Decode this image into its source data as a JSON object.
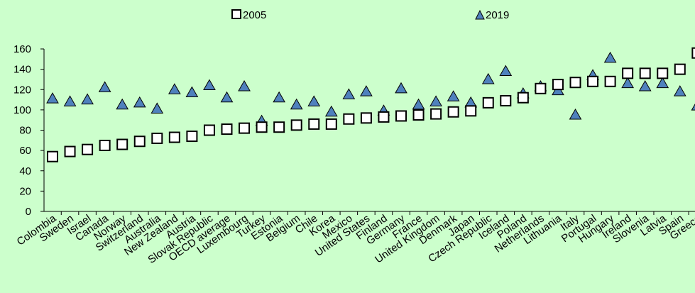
{
  "chart_data": {
    "type": "scatter",
    "categories": [
      "Colombia",
      "Sweden",
      "Israel",
      "Canada",
      "Norway",
      "Switzerland",
      "Australia",
      "New Zealand",
      "Austria",
      "Slovak Republic",
      "OECD average",
      "Luxembourg",
      "Turkey",
      "Estonia",
      "Belgium",
      "Chile",
      "Korea",
      "Mexico",
      "United States",
      "Finland",
      "Germany",
      "France",
      "United Kingdom",
      "Denmark",
      "Japan",
      "Czech Republic",
      "Iceland",
      "Poland",
      "Netherlands",
      "Lithuania",
      "Italy",
      "Portugal",
      "Hungary",
      "Ireland",
      "Slovenia",
      "Latvia",
      "Spain",
      "Greece"
    ],
    "series": [
      {
        "name": "2005",
        "marker": "square",
        "color": "#ffffff",
        "stroke": "#000000",
        "values": [
          54,
          59,
          61,
          65,
          66,
          69,
          72,
          73,
          74,
          80,
          81,
          82,
          83,
          83,
          85,
          86,
          86,
          91,
          92,
          93,
          94,
          95,
          96,
          98,
          99,
          107,
          109,
          112,
          121,
          125,
          127,
          128,
          128,
          136,
          136,
          136,
          140,
          156
        ]
      },
      {
        "name": "2019",
        "marker": "triangle",
        "color": "#4f81bd",
        "stroke": "#000000",
        "values": [
          111,
          108,
          110,
          122,
          105,
          107,
          101,
          120,
          117,
          124,
          112,
          123,
          89,
          112,
          105,
          108,
          98,
          115,
          118,
          99,
          121,
          105,
          108,
          113,
          107,
          130,
          138,
          116,
          123,
          119,
          95,
          134,
          151,
          126,
          123,
          126,
          118,
          104
        ]
      }
    ],
    "ylim": [
      0,
      160
    ],
    "yticks": [
      0,
      20,
      40,
      60,
      80,
      100,
      120,
      140,
      160
    ],
    "legend_position": "top",
    "grid": false
  }
}
